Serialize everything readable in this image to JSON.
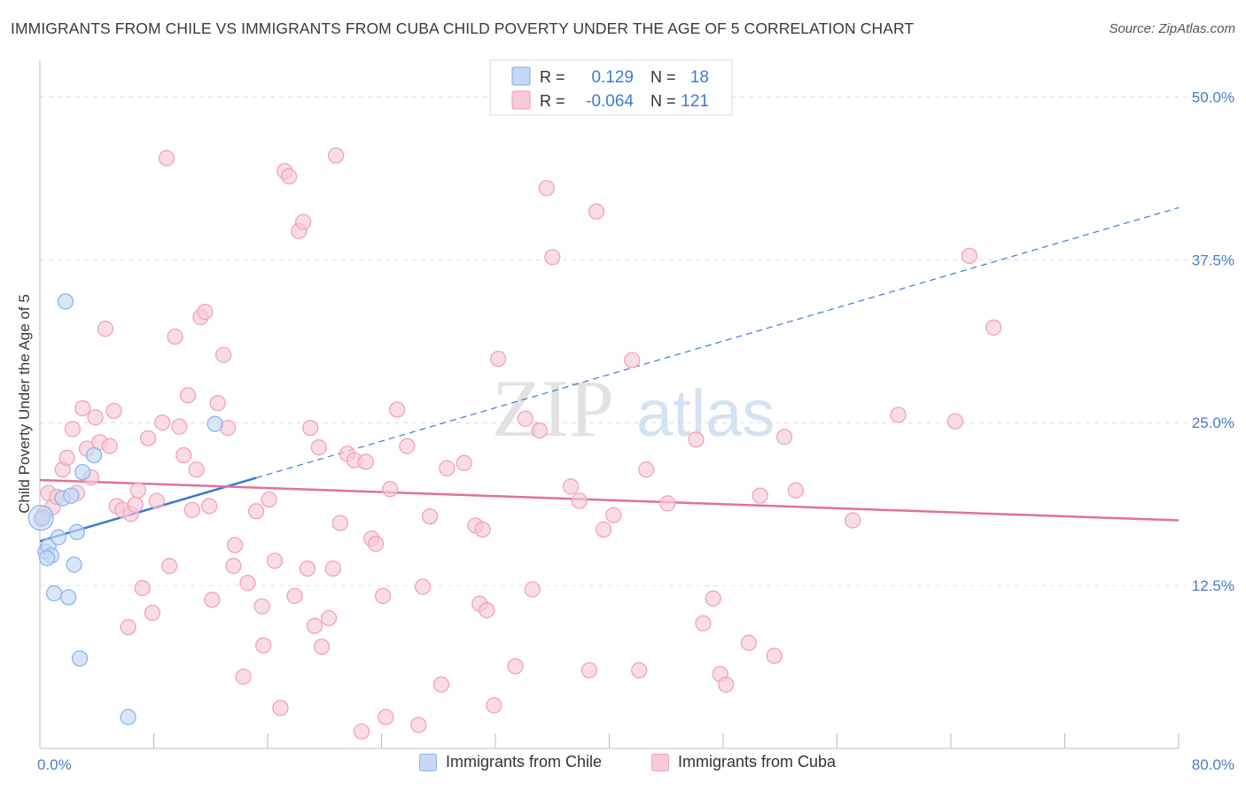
{
  "header": {
    "title": "IMMIGRANTS FROM CHILE VS IMMIGRANTS FROM CUBA CHILD POVERTY UNDER THE AGE OF 5 CORRELATION CHART",
    "source": "Source: ZipAtlas.com"
  },
  "watermark": {
    "zip": "ZIP",
    "atlas": "atlas"
  },
  "legend": {
    "rows": [
      {
        "r_label": "R =",
        "r_value": "0.129",
        "n_label": "N =",
        "n_value": "18"
      },
      {
        "r_label": "R =",
        "r_value": "-0.064",
        "n_label": "N =",
        "n_value": "121"
      }
    ]
  },
  "chart_data": {
    "type": "scatter",
    "ylabel": "Child Poverty Under the Age of 5",
    "xlabel": "",
    "xlim": [
      0,
      80
    ],
    "ylim": [
      0,
      52
    ],
    "x_tick_labels": [
      "0.0%",
      "80.0%"
    ],
    "y_ticks": [
      12.5,
      25.0,
      37.5,
      50.0
    ],
    "y_tick_labels": [
      "12.5%",
      "25.0%",
      "37.5%",
      "50.0%"
    ],
    "grid": true,
    "legend_position": "top-center",
    "series": [
      {
        "name": "Immigrants from Chile",
        "color": "#8fb4ea",
        "fill": "#c5d9f5",
        "line_color": "#3a78d6",
        "R": 0.129,
        "N": 18,
        "trend": {
          "x0": 0,
          "y0": 15.9,
          "x1": 80,
          "y1": 41.5,
          "solid_until_x": 15.2
        },
        "points": [
          [
            0.2,
            17.7
          ],
          [
            0.4,
            15.1
          ],
          [
            0.6,
            15.5
          ],
          [
            0.8,
            14.8
          ],
          [
            1.0,
            11.9
          ],
          [
            1.3,
            16.2
          ],
          [
            1.6,
            19.2
          ],
          [
            1.8,
            34.3
          ],
          [
            2.0,
            11.6
          ],
          [
            2.2,
            19.4
          ],
          [
            2.4,
            14.1
          ],
          [
            2.6,
            16.6
          ],
          [
            2.8,
            6.9
          ],
          [
            3.0,
            21.2
          ],
          [
            3.8,
            22.5
          ],
          [
            6.2,
            2.4
          ],
          [
            12.3,
            24.9
          ],
          [
            0.5,
            14.6
          ]
        ]
      },
      {
        "name": "Immigrants from Cuba",
        "color": "#f0a3bd",
        "fill": "#f8c9d8",
        "line_color": "#e0729a",
        "R": -0.064,
        "N": 121,
        "trend": {
          "x0": 0,
          "y0": 20.6,
          "x1": 80,
          "y1": 17.5
        },
        "points": [
          [
            0.3,
            18.0
          ],
          [
            0.6,
            19.6
          ],
          [
            0.9,
            18.5
          ],
          [
            1.2,
            19.3
          ],
          [
            1.6,
            21.4
          ],
          [
            1.9,
            22.3
          ],
          [
            2.3,
            24.5
          ],
          [
            2.6,
            19.6
          ],
          [
            3.0,
            26.1
          ],
          [
            3.3,
            23.0
          ],
          [
            3.6,
            20.8
          ],
          [
            3.9,
            25.4
          ],
          [
            4.2,
            23.5
          ],
          [
            4.6,
            32.2
          ],
          [
            4.9,
            23.2
          ],
          [
            5.2,
            25.9
          ],
          [
            5.4,
            18.6
          ],
          [
            5.8,
            18.3
          ],
          [
            6.2,
            9.3
          ],
          [
            6.4,
            18.0
          ],
          [
            6.7,
            18.7
          ],
          [
            6.9,
            19.8
          ],
          [
            7.2,
            12.3
          ],
          [
            7.6,
            23.8
          ],
          [
            7.9,
            10.4
          ],
          [
            8.2,
            19.0
          ],
          [
            8.6,
            25.0
          ],
          [
            8.9,
            45.3
          ],
          [
            9.1,
            14.0
          ],
          [
            9.5,
            31.6
          ],
          [
            9.8,
            24.7
          ],
          [
            10.1,
            22.5
          ],
          [
            10.4,
            27.1
          ],
          [
            10.7,
            18.3
          ],
          [
            11.0,
            21.4
          ],
          [
            11.3,
            33.1
          ],
          [
            11.6,
            33.5
          ],
          [
            11.9,
            18.6
          ],
          [
            12.1,
            11.4
          ],
          [
            12.5,
            26.5
          ],
          [
            12.9,
            30.2
          ],
          [
            13.2,
            24.6
          ],
          [
            13.6,
            14.0
          ],
          [
            13.7,
            15.6
          ],
          [
            14.3,
            5.5
          ],
          [
            14.6,
            12.7
          ],
          [
            15.2,
            18.2
          ],
          [
            15.6,
            10.9
          ],
          [
            15.7,
            7.9
          ],
          [
            16.1,
            19.1
          ],
          [
            16.5,
            14.4
          ],
          [
            16.9,
            3.1
          ],
          [
            17.2,
            44.3
          ],
          [
            17.5,
            43.9
          ],
          [
            17.9,
            11.7
          ],
          [
            18.2,
            39.7
          ],
          [
            18.5,
            40.4
          ],
          [
            18.8,
            13.8
          ],
          [
            19.0,
            24.6
          ],
          [
            19.3,
            9.4
          ],
          [
            19.6,
            23.1
          ],
          [
            19.8,
            7.8
          ],
          [
            20.3,
            10.0
          ],
          [
            20.6,
            13.8
          ],
          [
            20.8,
            45.5
          ],
          [
            21.1,
            17.3
          ],
          [
            21.6,
            22.6
          ],
          [
            22.1,
            22.1
          ],
          [
            22.6,
            1.3
          ],
          [
            22.9,
            22.0
          ],
          [
            23.3,
            16.1
          ],
          [
            23.6,
            15.7
          ],
          [
            24.1,
            11.7
          ],
          [
            24.3,
            2.4
          ],
          [
            24.6,
            19.9
          ],
          [
            25.1,
            26.0
          ],
          [
            25.8,
            23.2
          ],
          [
            26.6,
            1.8
          ],
          [
            26.9,
            12.4
          ],
          [
            27.4,
            17.8
          ],
          [
            28.2,
            4.9
          ],
          [
            28.6,
            21.5
          ],
          [
            29.8,
            21.9
          ],
          [
            30.6,
            17.1
          ],
          [
            30.9,
            11.1
          ],
          [
            31.1,
            16.8
          ],
          [
            31.4,
            10.6
          ],
          [
            31.9,
            3.3
          ],
          [
            32.2,
            29.9
          ],
          [
            33.4,
            6.3
          ],
          [
            34.1,
            25.3
          ],
          [
            34.6,
            12.2
          ],
          [
            35.1,
            24.4
          ],
          [
            35.6,
            43.0
          ],
          [
            36.0,
            37.7
          ],
          [
            37.3,
            20.1
          ],
          [
            37.9,
            19.0
          ],
          [
            38.6,
            6.0
          ],
          [
            39.1,
            41.2
          ],
          [
            39.6,
            16.8
          ],
          [
            40.3,
            17.9
          ],
          [
            41.6,
            29.8
          ],
          [
            42.1,
            6.0
          ],
          [
            42.6,
            21.4
          ],
          [
            44.1,
            18.8
          ],
          [
            46.1,
            23.7
          ],
          [
            46.6,
            9.6
          ],
          [
            47.3,
            11.5
          ],
          [
            47.8,
            5.7
          ],
          [
            48.2,
            4.9
          ],
          [
            49.8,
            8.1
          ],
          [
            50.6,
            19.4
          ],
          [
            51.6,
            7.1
          ],
          [
            52.3,
            23.9
          ],
          [
            53.1,
            19.8
          ],
          [
            57.1,
            17.5
          ],
          [
            60.3,
            25.6
          ],
          [
            64.3,
            25.1
          ],
          [
            65.3,
            37.8
          ],
          [
            67.0,
            32.3
          ],
          [
            0.1,
            17.6
          ]
        ]
      }
    ]
  }
}
